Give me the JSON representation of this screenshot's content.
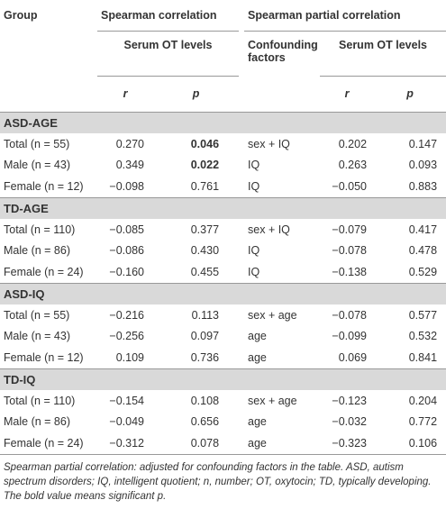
{
  "header": {
    "group": "Group",
    "spearman": "Spearman correlation",
    "partial": "Spearman partial correlation",
    "serum": "Serum OT levels",
    "confounding": "Confounding factors",
    "partial_serum": "Serum OT levels",
    "r": "r",
    "p": "p",
    "partial_r": "r",
    "partial_p": "p"
  },
  "sections": [
    {
      "title": "ASD-AGE",
      "rows": [
        {
          "label": "Total (n = 55)",
          "r": "0.270",
          "p": "0.046",
          "p_bold": true,
          "confounding": "sex + IQ",
          "partial_r": "0.202",
          "partial_p": "0.147"
        },
        {
          "label": "Male (n = 43)",
          "r": "0.349",
          "p": "0.022",
          "p_bold": true,
          "confounding": "IQ",
          "partial_r": "0.263",
          "partial_p": "0.093"
        },
        {
          "label": "Female (n = 12)",
          "r": "−0.098",
          "p": "0.761",
          "confounding": "IQ",
          "partial_r": "−0.050",
          "partial_p": "0.883"
        }
      ]
    },
    {
      "title": "TD-AGE",
      "rows": [
        {
          "label": "Total (n = 110)",
          "r": "−0.085",
          "p": "0.377",
          "confounding": "sex + IQ",
          "partial_r": "−0.079",
          "partial_p": "0.417"
        },
        {
          "label": "Male (n = 86)",
          "r": "−0.086",
          "p": "0.430",
          "confounding": "IQ",
          "partial_r": "−0.078",
          "partial_p": "0.478"
        },
        {
          "label": "Female (n = 24)",
          "r": "−0.160",
          "p": "0.455",
          "confounding": "IQ",
          "partial_r": "−0.138",
          "partial_p": "0.529"
        }
      ]
    },
    {
      "title": "ASD-IQ",
      "rows": [
        {
          "label": "Total (n = 55)",
          "r": "−0.216",
          "p": "0.113",
          "confounding": "sex + age",
          "partial_r": "−0.078",
          "partial_p": "0.577"
        },
        {
          "label": "Male (n = 43)",
          "r": "−0.256",
          "p": "0.097",
          "confounding": "age",
          "partial_r": "−0.099",
          "partial_p": "0.532"
        },
        {
          "label": "Female (n = 12)",
          "r": "0.109",
          "p": "0.736",
          "confounding": "age",
          "partial_r": "0.069",
          "partial_p": "0.841"
        }
      ]
    },
    {
      "title": "TD-IQ",
      "rows": [
        {
          "label": "Total (n = 110)",
          "r": "−0.154",
          "p": "0.108",
          "confounding": "sex + age",
          "partial_r": "−0.123",
          "partial_p": "0.204"
        },
        {
          "label": "Male (n = 86)",
          "r": "−0.049",
          "p": "0.656",
          "confounding": "age",
          "partial_r": "−0.032",
          "partial_p": "0.772"
        },
        {
          "label": "Female (n = 24)",
          "r": "−0.312",
          "p": "0.078",
          "confounding": "age",
          "partial_r": "−0.323",
          "partial_p": "0.106"
        }
      ]
    }
  ],
  "footnote": "Spearman partial correlation: adjusted for confounding factors in the table. ASD, autism spectrum disorders; IQ, intelligent quotient; n, number; OT, oxytocin; TD, typically developing. The bold value means significant p."
}
